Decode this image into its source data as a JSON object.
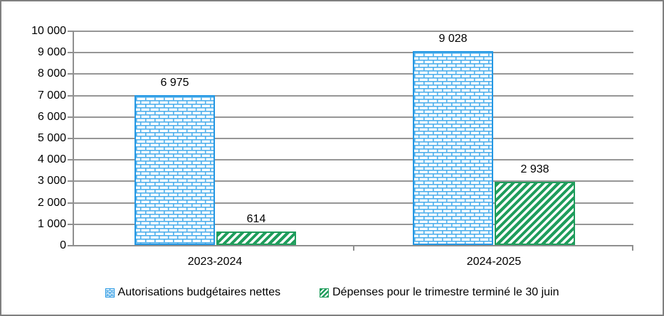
{
  "chart_data": {
    "type": "bar",
    "title": "",
    "categories": [
      "2023-2024",
      "2024-2025"
    ],
    "series": [
      {
        "name": "Autorisations budgétaires nettes",
        "values": [
          6975,
          9028
        ],
        "value_labels": [
          "6 975",
          "9 028"
        ],
        "color": "#2497E3",
        "pattern": "brick"
      },
      {
        "name": "Dépenses pour le trimestre terminé le 30 juin",
        "values": [
          614,
          2938
        ],
        "value_labels": [
          "614",
          "2 938"
        ],
        "color": "#1F9D5C",
        "pattern": "diagonal-stripe"
      }
    ],
    "ylim": [
      0,
      10000
    ],
    "ytick_interval": 1000,
    "ytick_labels": [
      "10 000",
      "9 000",
      "8 000",
      "7 000",
      "6 000",
      "5 000",
      "4 000",
      "3 000",
      "2 000",
      "1 000",
      "0"
    ],
    "grid": "horizontal-gridlines-on",
    "legend_position": "bottom-center",
    "colors": {
      "grid_gray": "#969696",
      "axis_gray": "#8F8F8F",
      "frame_gray": "#7F7F7F",
      "series_blue": "#2497E3",
      "series_green": "#1F9D5C"
    }
  }
}
